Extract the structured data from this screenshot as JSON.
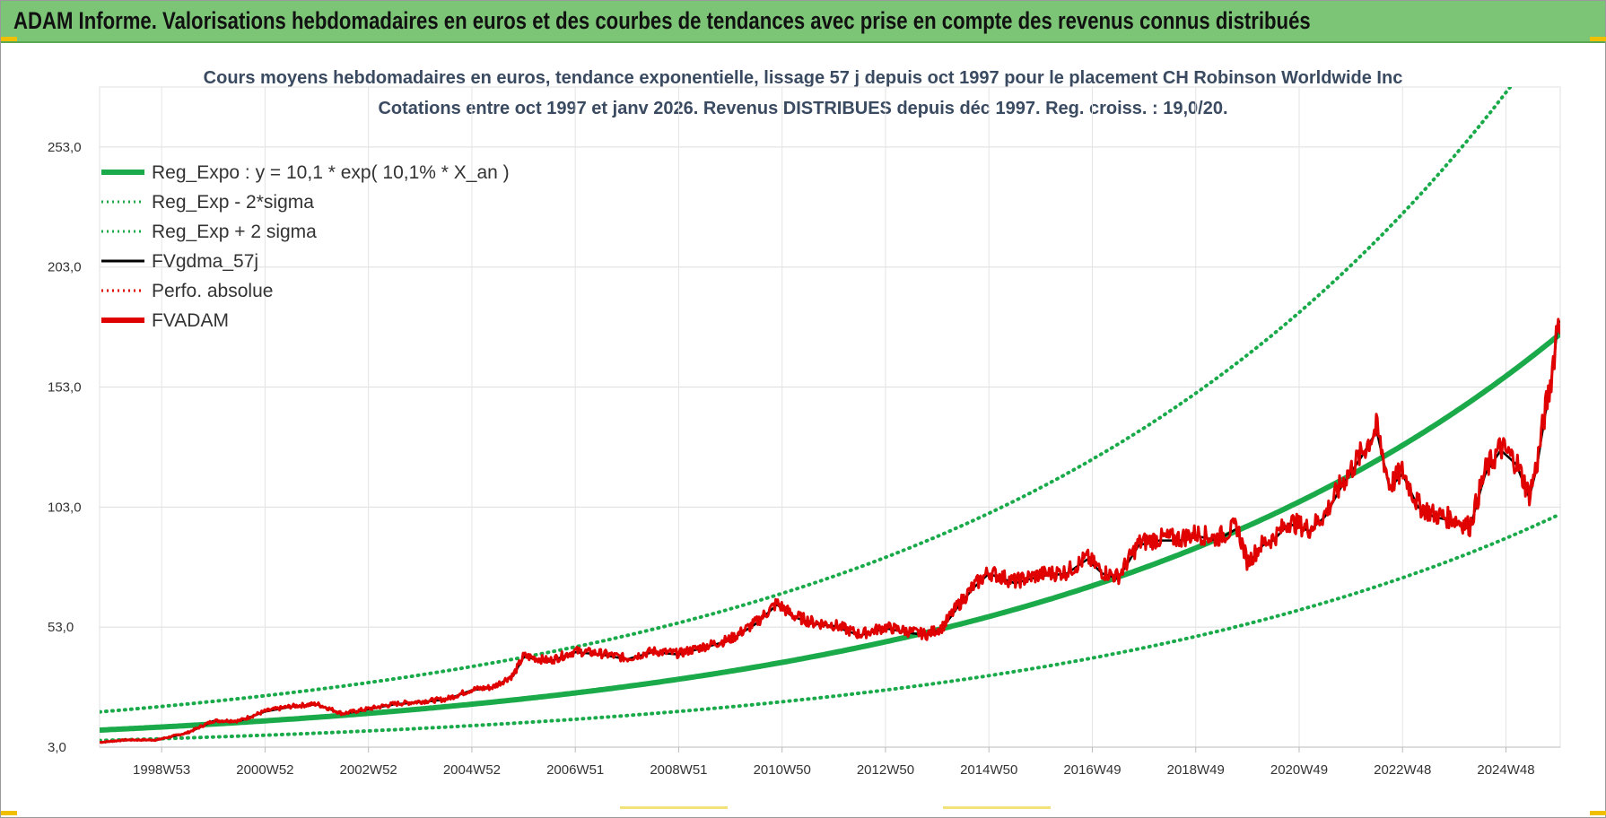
{
  "banner": {
    "title": "ADAM Informe. Valorisations hebdomadaires en euros et des courbes de tendances avec prise en compte des revenus connus distribués",
    "background": "#7cc576"
  },
  "chart_data": {
    "type": "line",
    "title": "Cours moyens hebdomadaires en euros, tendance exponentielle, lissage 57 j depuis oct 1997 pour le placement CH Robinson Worldwide Inc",
    "subtitle": "Cotations entre oct 1997 et janv 2026. Revenus DISTRIBUES depuis déc 1997. Reg. croiss. : 19,0/20.",
    "xlabel": "",
    "ylabel": "",
    "x_range": [
      1997.8,
      2026.05
    ],
    "ylim": [
      3.0,
      278.0
    ],
    "y_ticks": [
      "3,0",
      "53,0",
      "103,0",
      "153,0",
      "203,0",
      "253,0"
    ],
    "y_tick_values": [
      3,
      53,
      103,
      153,
      203,
      253
    ],
    "x_ticks": [
      {
        "label": "1998W53",
        "t": 1999.0
      },
      {
        "label": "2000W52",
        "t": 2001.0
      },
      {
        "label": "2002W52",
        "t": 2003.0
      },
      {
        "label": "2004W52",
        "t": 2005.0
      },
      {
        "label": "2006W51",
        "t": 2007.0
      },
      {
        "label": "2008W51",
        "t": 2009.0
      },
      {
        "label": "2010W50",
        "t": 2011.0
      },
      {
        "label": "2012W50",
        "t": 2013.0
      },
      {
        "label": "2014W50",
        "t": 2015.0
      },
      {
        "label": "2016W49",
        "t": 2017.0
      },
      {
        "label": "2018W49",
        "t": 2019.0
      },
      {
        "label": "2020W49",
        "t": 2021.0
      },
      {
        "label": "2022W48",
        "t": 2023.0
      },
      {
        "label": "2024W48",
        "t": 2025.0
      }
    ],
    "grid": true,
    "legend_position": "top-left",
    "regression": {
      "a": 10.1,
      "rate": 0.101,
      "t0": 1997.8,
      "sigma_factor": 1.75
    },
    "series": [
      {
        "name": "Reg_Expo : y = 10,1 * exp( 10,1% *  X_an )",
        "color": "#1aaa4a",
        "style": "solid-thick"
      },
      {
        "name": "Reg_Exp - 2*sigma",
        "color": "#1aaa4a",
        "style": "dotted"
      },
      {
        "name": "Reg_Exp + 2 sigma",
        "color": "#1aaa4a",
        "style": "dotted"
      },
      {
        "name": "FVgdma_57j",
        "color": "#000000",
        "style": "solid"
      },
      {
        "name": "Perfo. absolue",
        "color": "#e00000",
        "style": "dotted"
      },
      {
        "name": "FVADAM",
        "color": "#e00000",
        "style": "solid-thick",
        "x": [
          1997.8,
          1998.3,
          1998.9,
          1999.5,
          2000.0,
          2000.5,
          2001.0,
          2001.5,
          2002.0,
          2002.5,
          2003.0,
          2003.5,
          2004.0,
          2004.5,
          2005.0,
          2005.4,
          2005.8,
          2006.0,
          2006.5,
          2007.0,
          2007.5,
          2008.0,
          2008.5,
          2009.0,
          2009.5,
          2010.0,
          2010.5,
          2010.9,
          2011.2,
          2011.6,
          2012.0,
          2012.5,
          2013.0,
          2013.5,
          2013.8,
          2014.1,
          2014.4,
          2014.7,
          2015.0,
          2015.5,
          2016.0,
          2016.5,
          2016.9,
          2017.2,
          2017.5,
          2017.9,
          2018.3,
          2018.7,
          2019.0,
          2019.4,
          2019.8,
          2020.0,
          2020.3,
          2020.5,
          2020.8,
          2021.2,
          2021.5,
          2021.8,
          2022.2,
          2022.5,
          2022.75,
          2023.0,
          2023.3,
          2023.6,
          2024.0,
          2024.3,
          2024.6,
          2024.9,
          2025.2,
          2025.45,
          2025.6,
          2025.75,
          2025.85,
          2025.95,
          2026.0
        ],
        "values": [
          5,
          6,
          6,
          9,
          14,
          14,
          18,
          20,
          21,
          17,
          19,
          21,
          22,
          23,
          27,
          28,
          33,
          41,
          39,
          43,
          42,
          40,
          43,
          42,
          45,
          48,
          55,
          63,
          58,
          55,
          54,
          50,
          53,
          51,
          50,
          53,
          62,
          70,
          76,
          72,
          75,
          76,
          82,
          76,
          74,
          88,
          90,
          90,
          92,
          90,
          95,
          80,
          88,
          90,
          97,
          94,
          100,
          112,
          125,
          136,
          112,
          118,
          104,
          100,
          98,
          95,
          118,
          128,
          122,
          108,
          121,
          142,
          153,
          170,
          182
        ]
      }
    ]
  }
}
